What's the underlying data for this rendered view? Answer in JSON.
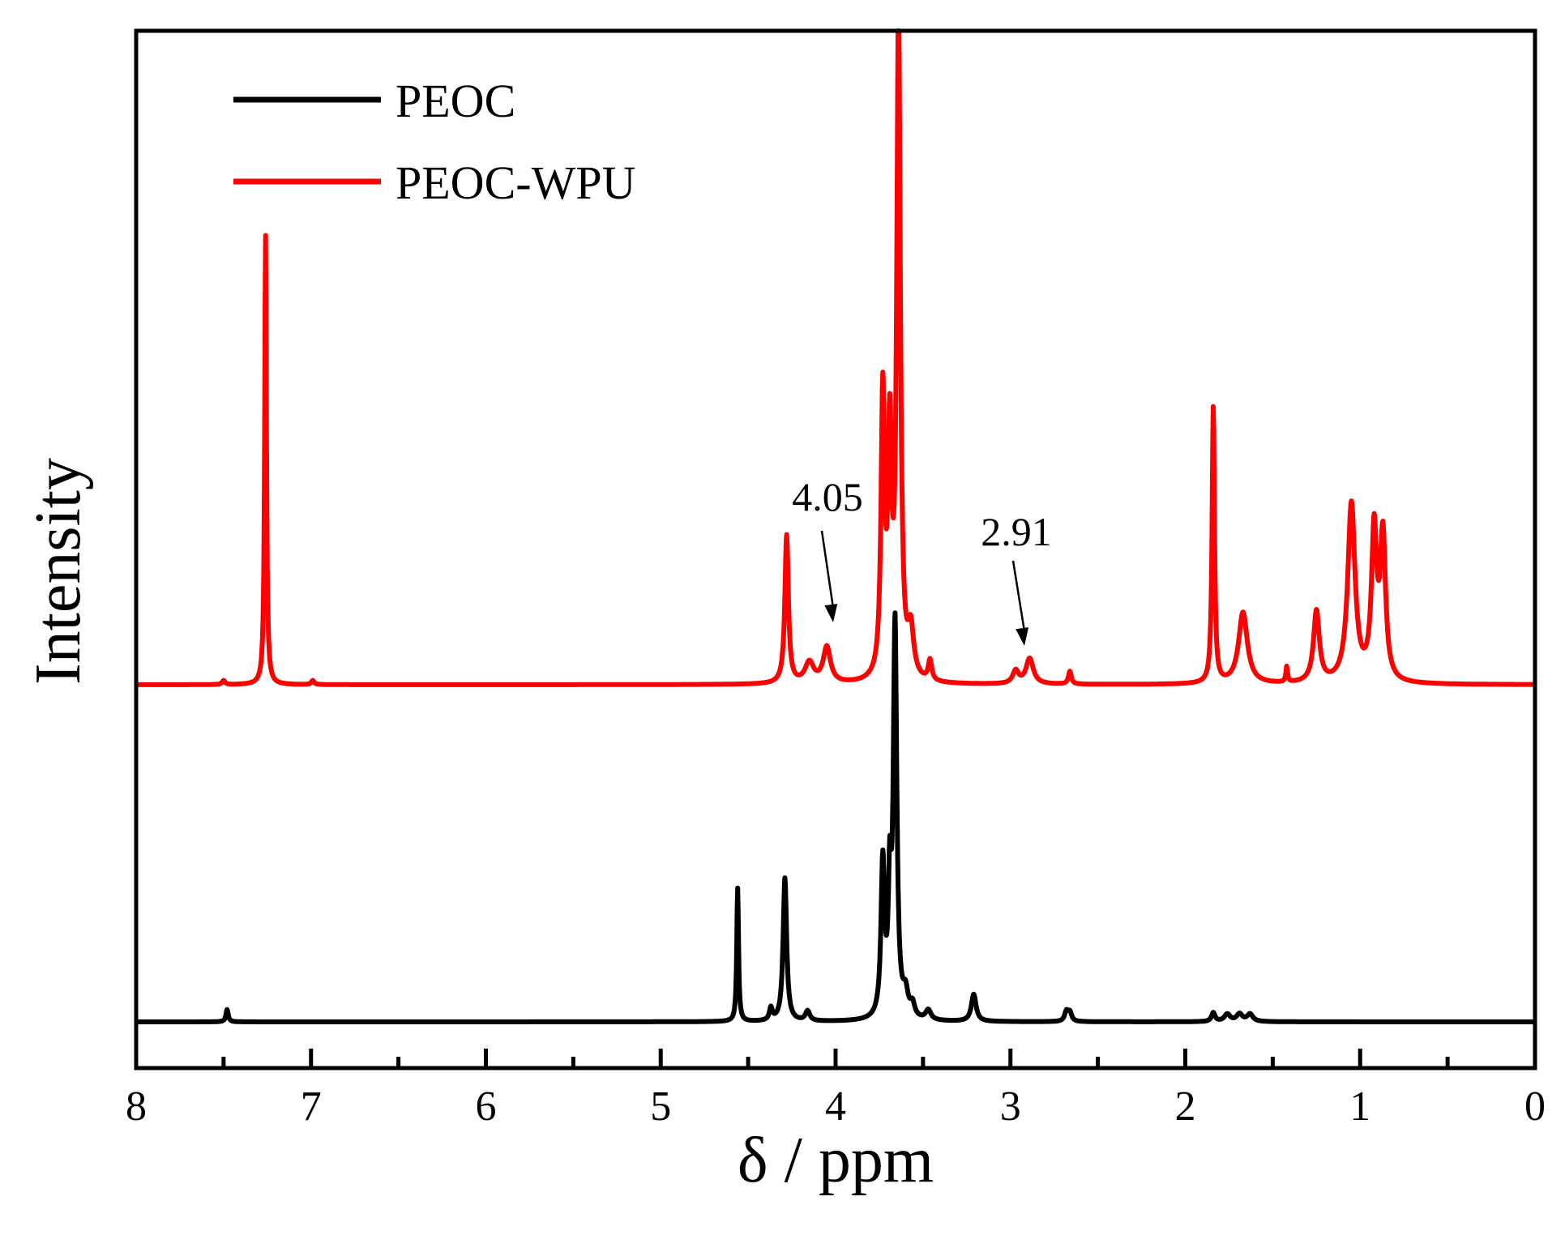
{
  "chart_data": {
    "type": "line",
    "xlabel": "δ / ppm",
    "ylabel": "Intensity",
    "xlim": [
      8,
      0
    ],
    "x_reversed": true,
    "x_ticks": [
      "8",
      "7",
      "6",
      "5",
      "4",
      "3",
      "2",
      "1",
      "0"
    ],
    "x_minor_ticks": [
      7.5,
      6.5,
      5.5,
      4.5,
      3.5,
      2.5,
      1.5,
      0.5
    ],
    "ylim": [
      0,
      100
    ],
    "y_ticks_shown": false,
    "grid": false,
    "legend": {
      "placement": "top-left"
    },
    "series": [
      {
        "name": "PEOC",
        "color": "#000000",
        "baseline": 0,
        "peaks": [
          {
            "x": 7.48,
            "height": 2.5,
            "width": 0.008
          },
          {
            "x": 4.56,
            "height": 27,
            "width": 0.006
          },
          {
            "x": 4.37,
            "height": 2.5,
            "width": 0.01
          },
          {
            "x": 4.29,
            "height": 29,
            "width": 0.012
          },
          {
            "x": 4.16,
            "height": 2,
            "width": 0.015
          },
          {
            "x": 3.73,
            "height": 31,
            "width": 0.012
          },
          {
            "x": 3.69,
            "height": 24,
            "width": 0.01
          },
          {
            "x": 3.66,
            "height": 79,
            "width": 0.012
          },
          {
            "x": 3.6,
            "height": 4.5,
            "width": 0.018
          },
          {
            "x": 3.56,
            "height": 2.5,
            "width": 0.015
          },
          {
            "x": 3.47,
            "height": 2,
            "width": 0.018
          },
          {
            "x": 3.21,
            "height": 5.5,
            "width": 0.016
          },
          {
            "x": 2.68,
            "height": 2,
            "width": 0.012
          },
          {
            "x": 2.66,
            "height": 1.8,
            "width": 0.012
          },
          {
            "x": 1.84,
            "height": 1.8,
            "width": 0.012
          },
          {
            "x": 1.76,
            "height": 1.5,
            "width": 0.02
          },
          {
            "x": 1.69,
            "height": 1.5,
            "width": 0.02
          },
          {
            "x": 1.63,
            "height": 1.5,
            "width": 0.02
          }
        ]
      },
      {
        "name": "PEOC-WPU",
        "color": "#ff0000",
        "baseline": 0,
        "peaks": [
          {
            "x": 7.5,
            "height": 0.8,
            "width": 0.01
          },
          {
            "x": 7.26,
            "height": 88,
            "width": 0.006
          },
          {
            "x": 6.99,
            "height": 0.8,
            "width": 0.01
          },
          {
            "x": 4.28,
            "height": 29,
            "width": 0.012
          },
          {
            "x": 4.15,
            "height": 4,
            "width": 0.03
          },
          {
            "x": 4.05,
            "height": 7,
            "width": 0.025
          },
          {
            "x": 3.73,
            "height": 55,
            "width": 0.012
          },
          {
            "x": 3.69,
            "height": 45,
            "width": 0.012
          },
          {
            "x": 3.64,
            "height": 132,
            "width": 0.012
          },
          {
            "x": 3.57,
            "height": 9,
            "width": 0.02
          },
          {
            "x": 3.46,
            "height": 4,
            "width": 0.012
          },
          {
            "x": 2.97,
            "height": 2.5,
            "width": 0.02
          },
          {
            "x": 2.89,
            "height": 5,
            "width": 0.025
          },
          {
            "x": 2.66,
            "height": 2.5,
            "width": 0.01
          },
          {
            "x": 1.84,
            "height": 54,
            "width": 0.008
          },
          {
            "x": 1.67,
            "height": 14,
            "width": 0.03
          },
          {
            "x": 1.42,
            "height": 3,
            "width": 0.006
          },
          {
            "x": 1.25,
            "height": 14,
            "width": 0.02
          },
          {
            "x": 1.05,
            "height": 35,
            "width": 0.025
          },
          {
            "x": 0.92,
            "height": 29,
            "width": 0.018
          },
          {
            "x": 0.87,
            "height": 28,
            "width": 0.018
          }
        ]
      }
    ],
    "annotations": [
      {
        "text": "4.05",
        "x": 4.05,
        "series": "PEOC-WPU"
      },
      {
        "text": "2.91",
        "x": 2.91,
        "series": "PEOC-WPU"
      }
    ]
  }
}
